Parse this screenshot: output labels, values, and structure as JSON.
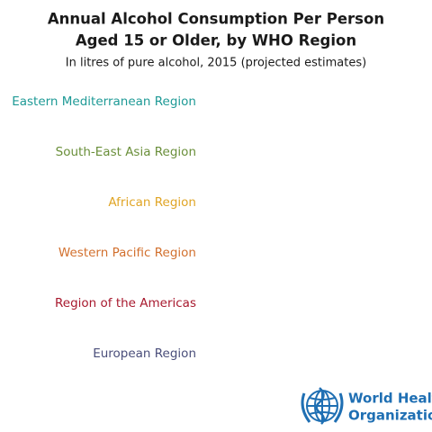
{
  "header": {
    "title_lines": [
      "Annual Alcohol Consumption Per Person",
      "Aged 15 or Older, by WHO Region"
    ],
    "subtitle": "In litres of pure alcohol, 2015 (projected estimates)"
  },
  "regions": [
    {
      "label": "Eastern Mediterranean Region",
      "color": "#1e9a96"
    },
    {
      "label": "South-East Asia Region",
      "color": "#6a8f3a"
    },
    {
      "label": "African Region",
      "color": "#e0a526"
    },
    {
      "label": "Western Pacific Region",
      "color": "#d2702e"
    },
    {
      "label": "Region of the Americas",
      "color": "#a8192e"
    },
    {
      "label": "European Region",
      "color": "#4a4e7a"
    }
  ],
  "logo": {
    "lines": [
      "World Health",
      "Organization"
    ]
  }
}
